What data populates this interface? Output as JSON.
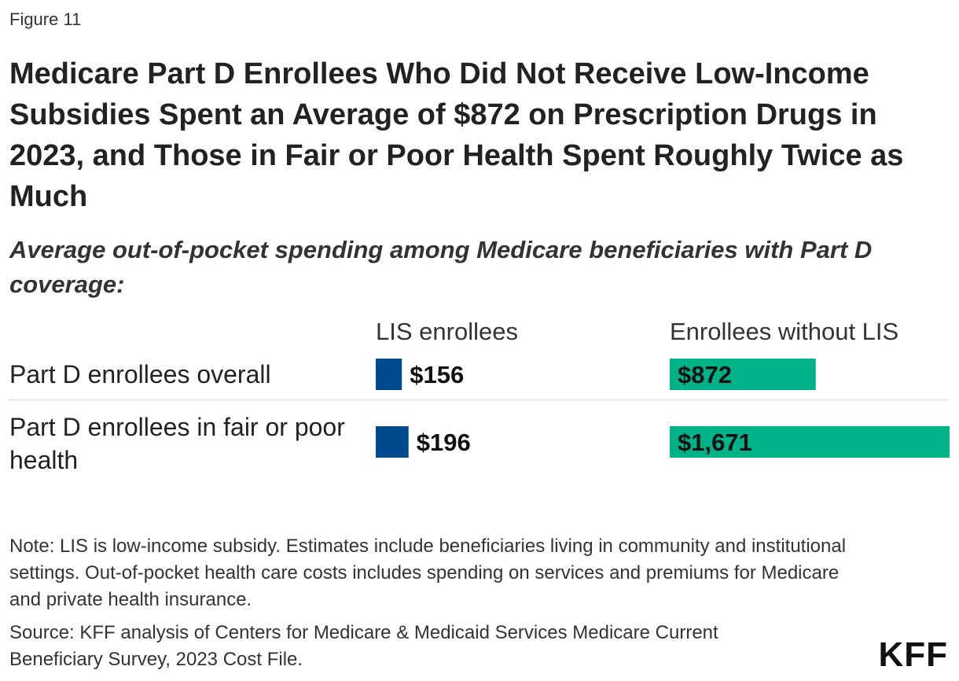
{
  "figure_label": "Figure 11",
  "logo_text": "KFF",
  "note": "Note: LIS is low-income subsidy. Estimates include beneficiaries living in community and institutional settings. Out-of-pocket health care costs includes spending on services and premiums for Medicare and private health insurance.",
  "source": "Source: KFF analysis of Centers for Medicare & Medicaid Services Medicare Current Beneficiary Survey, 2023 Cost File.",
  "colors": {
    "lis": "#004B8D",
    "nolis": "#00B287"
  },
  "chart_data": {
    "type": "bar",
    "orientation": "horizontal",
    "title": "Medicare Part D Enrollees Who Did Not Receive Low-Income Subsidies Spent an Average of $872 on Prescription Drugs in 2023, and Those in Fair or Poor Health Spent Roughly Twice as Much",
    "subtitle": "Average out-of-pocket spending among Medicare beneficiaries with Part D coverage:",
    "categories": [
      "Part D enrollees overall",
      "Part D enrollees in fair or poor health"
    ],
    "series": [
      {
        "name": "LIS enrollees",
        "values": [
          156,
          196
        ],
        "labels": [
          "$156",
          "$196"
        ]
      },
      {
        "name": "Enrollees without LIS",
        "values": [
          872,
          1671
        ],
        "labels": [
          "$872",
          "$1,671"
        ]
      }
    ],
    "grid": false,
    "legend": "column headers"
  }
}
